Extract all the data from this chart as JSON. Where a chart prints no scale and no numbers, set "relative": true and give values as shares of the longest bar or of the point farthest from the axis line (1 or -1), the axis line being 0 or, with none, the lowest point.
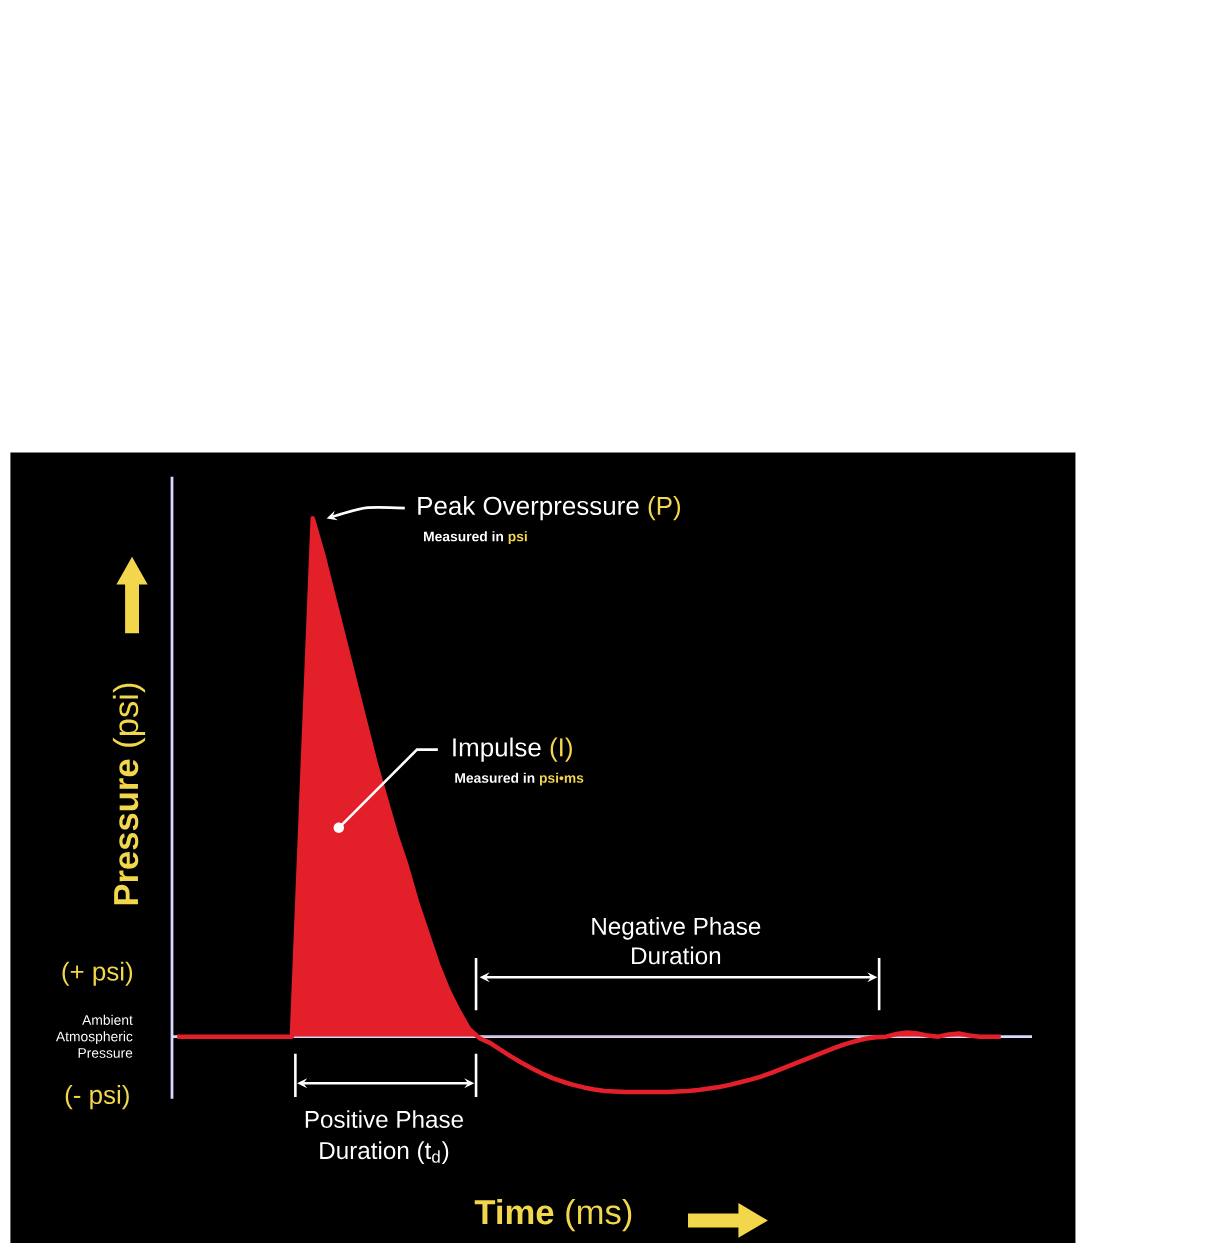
{
  "chart_data": {
    "type": "area",
    "relative": true,
    "xlabel": "**Time** (ms)",
    "ylabel": "**Pressure** (psi)",
    "categories": [
      null,
      null,
      null,
      null,
      null,
      null,
      null,
      null,
      null,
      null,
      null,
      null,
      null,
      null,
      null,
      null,
      null,
      null,
      null,
      null,
      null,
      null,
      null,
      null,
      null,
      null,
      null,
      null,
      null,
      null,
      null,
      null,
      null,
      null,
      null,
      null,
      null,
      null,
      null,
      null,
      null,
      null,
      null,
      null,
      null,
      null,
      null,
      null,
      null,
      null,
      null,
      null,
      null,
      null,
      null,
      null,
      null,
      null,
      null,
      null,
      null,
      null,
      null,
      null,
      null,
      null,
      null,
      null,
      null,
      null,
      null,
      null,
      null,
      null,
      null,
      null,
      null,
      null,
      null,
      null
    ],
    "values": [
      0,
      0,
      0,
      0,
      0,
      0,
      0,
      0,
      0,
      0,
      0,
      0,
      0.5,
      1.0,
      0.93,
      0.85,
      0.77,
      0.69,
      0.61,
      0.53,
      0.46,
      0.39,
      0.33,
      0.26,
      0.2,
      0.14,
      0.09,
      0.05,
      0.015,
      -0.003,
      -0.012,
      -0.025,
      -0.038,
      -0.05,
      -0.061,
      -0.071,
      -0.08,
      -0.087,
      -0.093,
      -0.098,
      -0.102,
      -0.105,
      -0.106,
      -0.107,
      -0.107,
      -0.107,
      -0.107,
      -0.107,
      -0.106,
      -0.105,
      -0.103,
      -0.1,
      -0.097,
      -0.093,
      -0.088,
      -0.083,
      -0.077,
      -0.07,
      -0.062,
      -0.054,
      -0.046,
      -0.038,
      -0.03,
      -0.022,
      -0.015,
      -0.009,
      -0.004,
      -0.001,
      0,
      0.005,
      0.008,
      0.006,
      0.002,
      0,
      0.004,
      0.006,
      0.002,
      0,
      0,
      0
    ],
    "color": "#e3202a",
    "annotations": [
      "Peak Overpressure",
      "(P)",
      "Measured in",
      "psi",
      "Impulse",
      "(I)",
      "Measured in",
      "psi•ms",
      "Negative Phase",
      "Duration",
      "Positive Phase",
      "Duration (t$_{d}$)",
      "(+ psi)",
      "Ambient",
      "Atmospheric",
      "Pressure",
      "(- psi)"
    ]
  }
}
